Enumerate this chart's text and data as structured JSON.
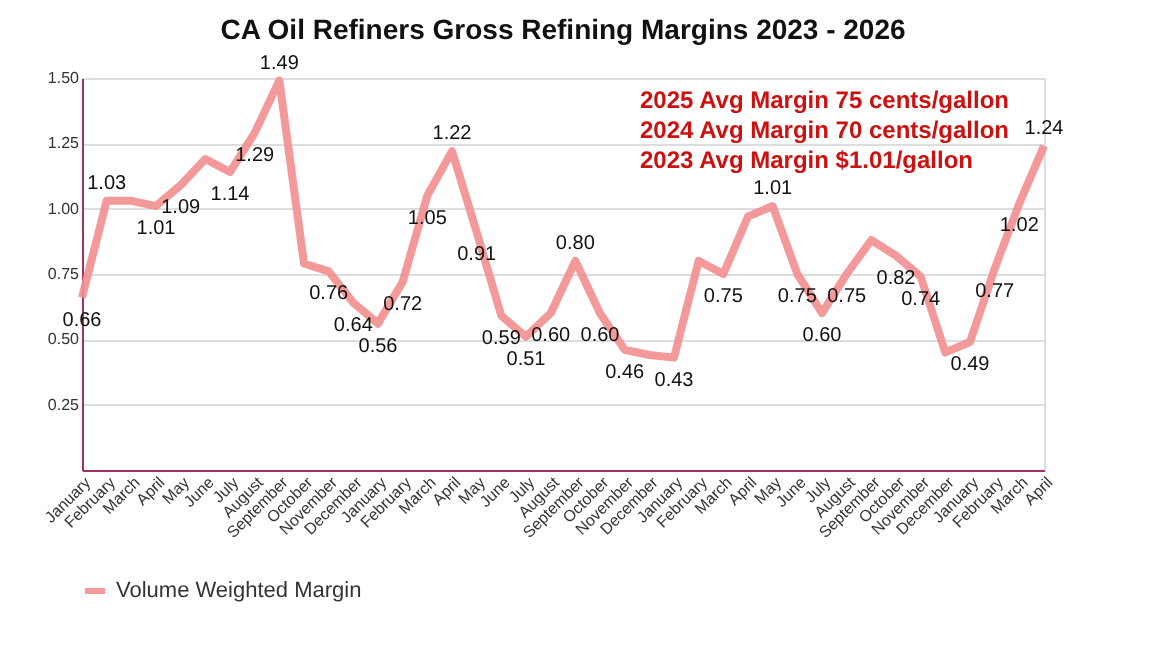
{
  "chart_data": {
    "type": "line",
    "title": "CA Oil Refiners Gross Refining Margins 2023 - 2026",
    "categories": [
      "January",
      "February",
      "March",
      "April",
      "May",
      "June",
      "July",
      "August",
      "September",
      "October",
      "November",
      "December",
      "January",
      "February",
      "March",
      "April",
      "May",
      "June",
      "July",
      "August",
      "September",
      "October",
      "November",
      "December",
      "January",
      "February",
      "March",
      "April",
      "May",
      "June",
      "July",
      "August",
      "September",
      "October",
      "November",
      "December",
      "January",
      "February",
      "March",
      "April"
    ],
    "series": [
      {
        "name": "Volume Weighted Margin",
        "color": "#f28e8e",
        "values": [
          0.66,
          1.03,
          1.03,
          1.01,
          1.09,
          1.19,
          1.14,
          1.29,
          1.49,
          0.79,
          0.76,
          0.64,
          0.56,
          0.72,
          1.05,
          1.22,
          0.91,
          0.59,
          0.51,
          0.6,
          0.8,
          0.6,
          0.46,
          0.44,
          0.43,
          0.8,
          0.75,
          0.97,
          1.01,
          0.75,
          0.6,
          0.75,
          0.88,
          0.82,
          0.74,
          0.45,
          0.49,
          0.77,
          1.02,
          1.24
        ],
        "value_labels": [
          "0.66",
          "1.03",
          null,
          "1.01",
          "1.09",
          null,
          "1.14",
          "1.29",
          "1.49",
          null,
          "0.76",
          "0.64",
          "0.56",
          "0.72",
          "1.05",
          "1.22",
          "0.91",
          "0.59",
          "0.51",
          "0.60",
          "0.80",
          "0.60",
          "0.46",
          null,
          "0.43",
          null,
          "0.75",
          null,
          "1.01",
          "0.75",
          "0.60",
          "0.75",
          null,
          "0.82",
          "0.74",
          null,
          "0.49",
          "0.77",
          "1.02",
          "1.24"
        ]
      }
    ],
    "ylim": [
      0,
      1.5
    ],
    "yticks": [
      {
        "value": 0.25,
        "label": "0.25"
      },
      {
        "value": 0.5,
        "label": "0.50"
      },
      {
        "value": 0.75,
        "label": "0.75"
      },
      {
        "value": 1.0,
        "label": "1.00"
      },
      {
        "value": 1.25,
        "label": "1.25"
      },
      {
        "value": 1.5,
        "label": "1.50"
      }
    ],
    "grid": "y",
    "legend": "bottom",
    "line_style": "solid",
    "annotations": [
      "2025 Avg Margin 75 cents/gallon",
      "2024 Avg Margin 70 cents/gallon",
      "2023 Avg Margin $1.01/gallon"
    ]
  }
}
